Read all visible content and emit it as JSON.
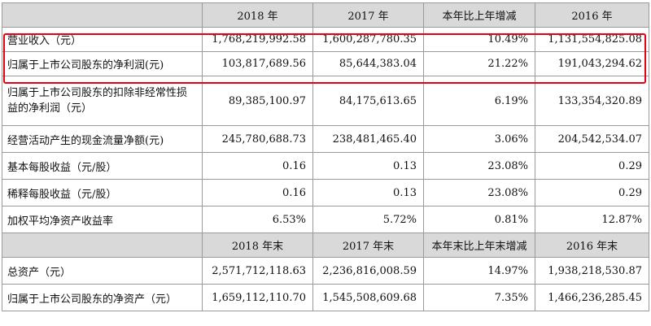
{
  "header1": {
    "empty": "",
    "col1": "2018 年",
    "col2": "2017 年",
    "col3": "本年比上年增减",
    "col4": "2016 年"
  },
  "rows1": [
    {
      "label": "营业收入（元）",
      "v2018": "1,768,219,992.58",
      "v2017": "1,600,287,780.35",
      "chg": "10.49%",
      "v2016": "1,131,554,825.08"
    },
    {
      "label": "归属于上市公司股东的净利润(元)",
      "v2018": "103,817,689.56",
      "v2017": "85,644,383.04",
      "chg": "21.22%",
      "v2016": "191,043,294.62"
    },
    {
      "label": "归属于上市公司股东的扣除非经常性损益的净利润（元）",
      "v2018": "89,385,100.97",
      "v2017": "84,175,613.65",
      "chg": "6.19%",
      "v2016": "133,354,320.89"
    },
    {
      "label": "经营活动产生的现金流量净额(元)",
      "v2018": "245,780,688.73",
      "v2017": "238,481,465.40",
      "chg": "3.06%",
      "v2016": "204,542,534.07"
    },
    {
      "label": "基本每股收益（元/股）",
      "v2018": "0.16",
      "v2017": "0.13",
      "chg": "23.08%",
      "v2016": "0.29"
    },
    {
      "label": "稀释每股收益（元/股）",
      "v2018": "0.16",
      "v2017": "0.13",
      "chg": "23.08%",
      "v2016": "0.29"
    },
    {
      "label": "加权平均净资产收益率",
      "v2018": "6.53%",
      "v2017": "5.72%",
      "chg": "0.81%",
      "v2016": "12.87%"
    }
  ],
  "header2": {
    "empty": "",
    "col1": "2018 年末",
    "col2": "2017 年末",
    "col3": "本年末比上年末增减",
    "col4": "2016 年末"
  },
  "rows2": [
    {
      "label": "总资产（元）",
      "v2018": "2,571,712,118.63",
      "v2017": "2,236,816,008.59",
      "chg": "14.97%",
      "v2016": "1,938,218,530.87"
    },
    {
      "label": "归属于上市公司股东的净资产（元）",
      "v2018": "1,659,112,110.70",
      "v2017": "1,545,508,609.68",
      "chg": "7.35%",
      "v2016": "1,466,236,285.45"
    }
  ],
  "highlight_color": "#e60012",
  "header_bg": "#d9d9d9"
}
